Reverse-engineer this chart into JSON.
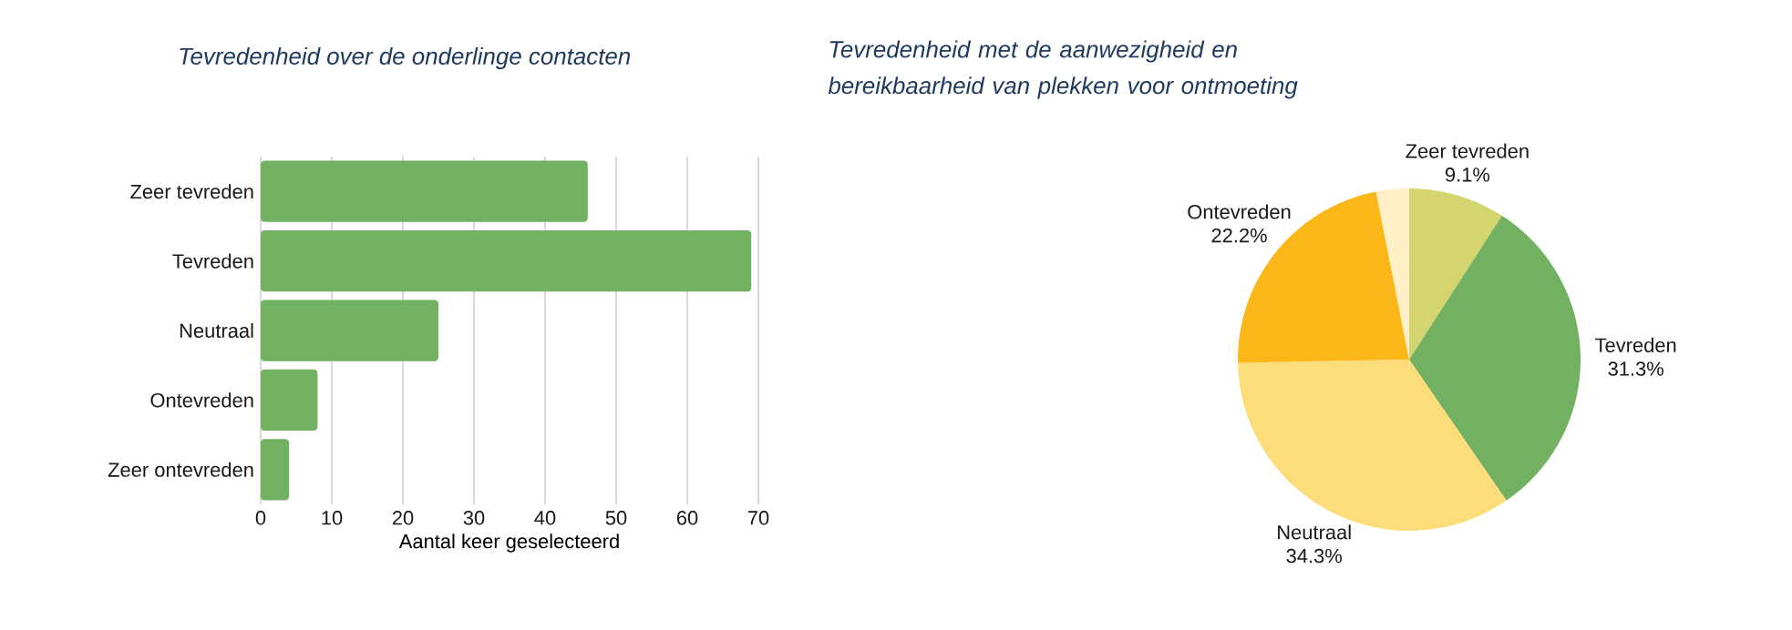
{
  "chart_data": [
    {
      "type": "bar",
      "orientation": "horizontal",
      "title": "Tevredenheid over de onderlinge contacten",
      "xlabel": "Aantal keer geselecteerd",
      "categories": [
        "Zeer tevreden",
        "Tevreden",
        "Neutraal",
        "Ontevreden",
        "Zeer ontevreden"
      ],
      "values": [
        46,
        69,
        25,
        8,
        4
      ],
      "color": "#72b062",
      "xlim": [
        0,
        70
      ],
      "xticks": [
        0,
        10,
        20,
        30,
        40,
        50,
        60,
        70
      ],
      "grid": "x"
    },
    {
      "type": "pie",
      "title": "Tevredenheid met de aanwezigheid en bereikbaarheid van plekken voor ontmoeting",
      "categories": [
        "Zeer tevreden",
        "Tevreden",
        "Neutraal",
        "Ontevreden",
        null
      ],
      "values": [
        9.1,
        31.3,
        34.3,
        22.2,
        3.1
      ],
      "value_labels": [
        "9.1%",
        "31.3%",
        "34.3%",
        "22.2%",
        null
      ],
      "colors": [
        "#d4d56f",
        "#72b062",
        "#fddc7a",
        "#fbb718",
        "#fff0c8"
      ]
    }
  ]
}
